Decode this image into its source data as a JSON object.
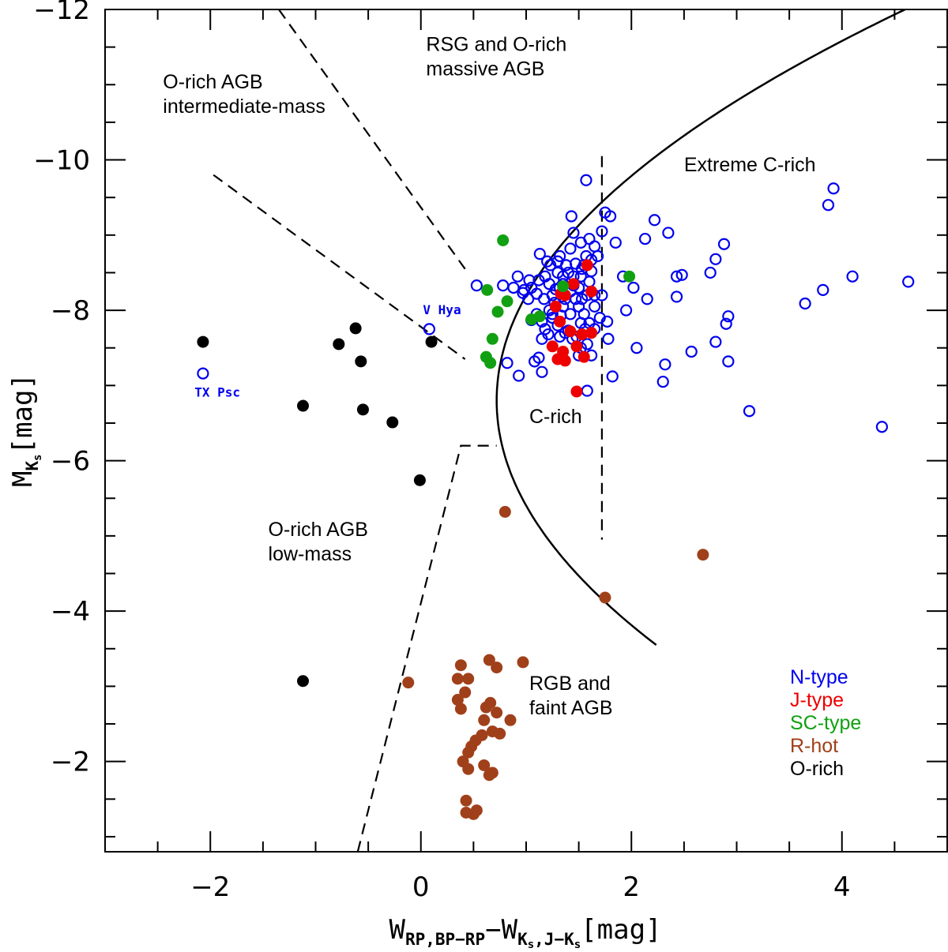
{
  "chart_data": {
    "type": "scatter",
    "xlabel": {
      "main": "W",
      "sub1": "RP,BP−RP",
      "mid": "−W",
      "sub2": "K",
      "sub2s": "s",
      "sub2b": ",J−K",
      "sub2bs": "s",
      "unit": "[mag]"
    },
    "ylabel": {
      "main": "M",
      "sub": "K",
      "subsub": "s",
      "unit": "[mag]"
    },
    "xlim": [
      -3,
      5
    ],
    "ylim": [
      -0.8,
      -12
    ],
    "x_ticks": [
      -2,
      0,
      2,
      4
    ],
    "y_ticks": [
      -2,
      -4,
      -6,
      -8,
      -10,
      -12
    ],
    "x_tick_labels": [
      "−2",
      "0",
      "2",
      "4"
    ],
    "y_tick_labels": [
      "−2",
      "−4",
      "−6",
      "−8",
      "−10",
      "−12"
    ],
    "region_labels": [
      {
        "lines": [
          "RSG and O-rich",
          "massive AGB"
        ],
        "x": 0.05,
        "y": -11.45
      },
      {
        "lines": [
          "O-rich AGB",
          "intermediate-mass"
        ],
        "x": -2.45,
        "y": -10.95
      },
      {
        "lines": [
          "Extreme C-rich"
        ],
        "x": 2.5,
        "y": -9.85
      },
      {
        "lines": [
          "C-rich"
        ],
        "x": 1.03,
        "y": -6.5
      },
      {
        "lines": [
          "O-rich AGB",
          "low-mass"
        ],
        "x": -1.45,
        "y": -5.0
      },
      {
        "lines": [
          "RGB and",
          "faint AGB"
        ],
        "x": 1.03,
        "y": -2.95
      }
    ],
    "star_labels": [
      {
        "text": "V Hya",
        "x": 0.02,
        "y": -7.95
      },
      {
        "text": "TX Psc",
        "x": -2.15,
        "y": -6.85
      }
    ],
    "boundary_curve": {
      "vertex": [
        0.72,
        -6.8
      ],
      "k": 0.1435,
      "y_range": [
        -3.55,
        -12
      ]
    },
    "dashed_lines": [
      [
        [
          -1.35,
          -12
        ],
        [
          0.42,
          -8.55
        ]
      ],
      [
        [
          -1.97,
          -9.8
        ],
        [
          0.42,
          -7.35
        ]
      ],
      [
        [
          -0.6,
          -0.8
        ],
        [
          0.38,
          -6.2
        ],
        [
          0.72,
          -6.2
        ]
      ],
      [
        [
          1.72,
          -10.05
        ],
        [
          1.72,
          -4.95
        ]
      ]
    ],
    "colors": {
      "N-type": "#0000ee",
      "J-type": "#ee0000",
      "SC-type": "#11a011",
      "R-hot": "#a0401a",
      "O-rich": "#000000"
    },
    "legend": [
      {
        "name": "N-type",
        "color": "#0000ee"
      },
      {
        "name": "J-type",
        "color": "#ee0000"
      },
      {
        "name": "SC-type",
        "color": "#11a011"
      },
      {
        "name": "R-hot",
        "color": "#a0401a"
      },
      {
        "name": "O-rich",
        "color": "#000000"
      }
    ],
    "series": [
      {
        "name": "N-type",
        "marker": "open-circle",
        "color": "#0000ee",
        "points": [
          [
            -2.07,
            -7.16
          ],
          [
            0.08,
            -7.75
          ],
          [
            0.53,
            -8.33
          ],
          [
            0.82,
            -7.3
          ],
          [
            0.93,
            -7.13
          ],
          [
            0.88,
            -8.3
          ],
          [
            0.92,
            -8.45
          ],
          [
            0.97,
            -8.23
          ],
          [
            1.03,
            -8.4
          ],
          [
            1.12,
            -8.4
          ],
          [
            1.18,
            -8.45
          ],
          [
            1.22,
            -8.35
          ],
          [
            1.13,
            -8.75
          ],
          [
            1.23,
            -8.6
          ],
          [
            1.3,
            -8.65
          ],
          [
            1.32,
            -8.72
          ],
          [
            1.38,
            -8.6
          ],
          [
            1.42,
            -8.82
          ],
          [
            1.47,
            -8.62
          ],
          [
            1.53,
            -8.55
          ],
          [
            1.57,
            -8.72
          ],
          [
            1.62,
            -8.67
          ],
          [
            1.62,
            -8.52
          ],
          [
            1.52,
            -8.45
          ],
          [
            1.45,
            -8.33
          ],
          [
            1.42,
            -8.25
          ],
          [
            1.37,
            -8.15
          ],
          [
            1.32,
            -8.3
          ],
          [
            1.3,
            -8.5
          ],
          [
            1.28,
            -8.28
          ],
          [
            1.27,
            -8.1
          ],
          [
            1.22,
            -8.0
          ],
          [
            1.25,
            -7.9
          ],
          [
            1.3,
            -7.8
          ],
          [
            1.18,
            -7.75
          ],
          [
            1.15,
            -7.62
          ],
          [
            1.21,
            -7.68
          ],
          [
            1.32,
            -7.65
          ],
          [
            1.37,
            -7.7
          ],
          [
            1.48,
            -7.65
          ],
          [
            1.52,
            -7.5
          ],
          [
            1.58,
            -7.55
          ],
          [
            1.62,
            -7.4
          ],
          [
            1.56,
            -7.75
          ],
          [
            1.6,
            -7.83
          ],
          [
            1.55,
            -7.95
          ],
          [
            1.5,
            -8.05
          ],
          [
            1.53,
            -8.15
          ],
          [
            1.58,
            -8.2
          ],
          [
            1.65,
            -8.05
          ],
          [
            1.7,
            -7.9
          ],
          [
            1.77,
            -7.85
          ],
          [
            1.78,
            -7.62
          ],
          [
            1.72,
            -8.2
          ],
          [
            1.6,
            -8.95
          ],
          [
            1.65,
            -8.85
          ],
          [
            1.68,
            -8.72
          ],
          [
            1.72,
            -9.05
          ],
          [
            1.75,
            -9.3
          ],
          [
            1.8,
            -9.25
          ],
          [
            1.85,
            -8.9
          ],
          [
            1.92,
            -8.45
          ],
          [
            1.95,
            -8.0
          ],
          [
            2.02,
            -8.3
          ],
          [
            2.05,
            -7.5
          ],
          [
            2.13,
            -8.95
          ],
          [
            2.15,
            -8.15
          ],
          [
            2.22,
            -9.2
          ],
          [
            2.35,
            -9.03
          ],
          [
            2.43,
            -8.45
          ],
          [
            2.48,
            -8.47
          ],
          [
            2.43,
            -8.18
          ],
          [
            2.32,
            -7.28
          ],
          [
            2.3,
            -7.05
          ],
          [
            2.57,
            -7.45
          ],
          [
            2.75,
            -8.5
          ],
          [
            2.8,
            -8.68
          ],
          [
            2.88,
            -8.88
          ],
          [
            2.9,
            -7.82
          ],
          [
            2.92,
            -7.92
          ],
          [
            2.8,
            -7.58
          ],
          [
            2.92,
            -7.32
          ],
          [
            3.12,
            -6.66
          ],
          [
            3.65,
            -8.09
          ],
          [
            3.82,
            -8.27
          ],
          [
            3.87,
            -9.4
          ],
          [
            3.92,
            -9.62
          ],
          [
            4.1,
            -8.45
          ],
          [
            4.38,
            -6.45
          ],
          [
            4.63,
            -8.38
          ],
          [
            1.57,
            -9.73
          ],
          [
            1.43,
            -9.25
          ],
          [
            1.45,
            -9.03
          ],
          [
            1.52,
            -8.9
          ],
          [
            1.35,
            -8.35
          ],
          [
            1.05,
            -7.87
          ],
          [
            1.12,
            -7.37
          ],
          [
            1.08,
            -7.32
          ],
          [
            1.15,
            -7.18
          ],
          [
            0.78,
            -8.33
          ],
          [
            0.98,
            -8.27
          ],
          [
            1.02,
            -8.15
          ],
          [
            1.1,
            -8.22
          ],
          [
            1.17,
            -8.15
          ],
          [
            1.25,
            -7.95
          ],
          [
            1.42,
            -7.95
          ],
          [
            1.47,
            -8.15
          ],
          [
            1.52,
            -7.83
          ],
          [
            1.44,
            -7.62
          ],
          [
            1.5,
            -7.4
          ],
          [
            1.58,
            -6.93
          ],
          [
            1.82,
            -7.12
          ],
          [
            1.1,
            -7.95
          ],
          [
            1.4,
            -8.5
          ],
          [
            1.6,
            -8.38
          ],
          [
            1.65,
            -8.2
          ],
          [
            1.35,
            -8.05
          ],
          [
            1.25,
            -8.2
          ],
          [
            1.5,
            -8.3
          ],
          [
            1.45,
            -8.45
          ],
          [
            1.33,
            -7.93
          ],
          [
            1.4,
            -7.73
          ],
          [
            1.55,
            -8.6
          ],
          [
            1.35,
            -8.45
          ],
          [
            1.65,
            -7.75
          ],
          [
            1.2,
            -8.65
          ],
          [
            1.05,
            -8.3
          ],
          [
            1.15,
            -7.85
          ]
        ]
      },
      {
        "name": "J-type",
        "marker": "filled-circle",
        "color": "#ee0000",
        "points": [
          [
            1.28,
            -8.05
          ],
          [
            1.33,
            -8.22
          ],
          [
            1.37,
            -8.2
          ],
          [
            1.45,
            -8.35
          ],
          [
            1.58,
            -8.6
          ],
          [
            1.62,
            -8.25
          ],
          [
            1.32,
            -7.85
          ],
          [
            1.42,
            -7.72
          ],
          [
            1.53,
            -7.68
          ],
          [
            1.62,
            -7.7
          ],
          [
            1.25,
            -7.52
          ],
          [
            1.35,
            -7.45
          ],
          [
            1.48,
            -7.52
          ],
          [
            1.55,
            -7.38
          ],
          [
            1.3,
            -7.35
          ],
          [
            1.37,
            -7.33
          ],
          [
            1.48,
            -6.92
          ]
        ]
      },
      {
        "name": "SC-type",
        "marker": "filled-circle",
        "color": "#11a011",
        "points": [
          [
            0.78,
            -8.93
          ],
          [
            0.63,
            -8.27
          ],
          [
            0.82,
            -8.12
          ],
          [
            0.73,
            -7.98
          ],
          [
            0.68,
            -7.62
          ],
          [
            0.62,
            -7.38
          ],
          [
            0.66,
            -7.3
          ],
          [
            1.13,
            -7.92
          ],
          [
            1.98,
            -8.45
          ],
          [
            1.35,
            -8.32
          ],
          [
            1.05,
            -7.88
          ]
        ]
      },
      {
        "name": "R-hot",
        "marker": "filled-circle",
        "color": "#a0401a",
        "points": [
          [
            0.8,
            -5.32
          ],
          [
            2.68,
            -4.75
          ],
          [
            1.75,
            -4.18
          ],
          [
            -0.12,
            -3.05
          ],
          [
            0.38,
            -3.28
          ],
          [
            0.45,
            -3.1
          ],
          [
            0.35,
            -3.1
          ],
          [
            0.42,
            -2.92
          ],
          [
            0.35,
            -2.82
          ],
          [
            0.38,
            -2.7
          ],
          [
            0.65,
            -3.35
          ],
          [
            0.72,
            -3.25
          ],
          [
            0.97,
            -3.32
          ],
          [
            0.62,
            -2.72
          ],
          [
            0.66,
            -2.78
          ],
          [
            0.72,
            -2.65
          ],
          [
            0.85,
            -2.55
          ],
          [
            0.6,
            -2.55
          ],
          [
            0.58,
            -2.35
          ],
          [
            0.68,
            -2.4
          ],
          [
            0.75,
            -2.37
          ],
          [
            0.52,
            -2.28
          ],
          [
            0.48,
            -2.2
          ],
          [
            0.45,
            -2.12
          ],
          [
            0.4,
            -2.0
          ],
          [
            0.45,
            -1.9
          ],
          [
            0.6,
            -1.95
          ],
          [
            0.65,
            -1.82
          ],
          [
            0.68,
            -1.85
          ],
          [
            0.43,
            -1.48
          ],
          [
            0.43,
            -1.32
          ],
          [
            0.5,
            -1.3
          ],
          [
            0.53,
            -1.35
          ]
        ]
      },
      {
        "name": "O-rich",
        "marker": "filled-circle",
        "color": "#000000",
        "points": [
          [
            -2.07,
            -7.58
          ],
          [
            -0.78,
            -7.55
          ],
          [
            -0.62,
            -7.76
          ],
          [
            -0.57,
            -7.32
          ],
          [
            -1.12,
            -6.73
          ],
          [
            -0.55,
            -6.68
          ],
          [
            -0.27,
            -6.51
          ],
          [
            -0.01,
            -5.74
          ],
          [
            0.1,
            -7.58
          ],
          [
            -1.12,
            -3.07
          ]
        ]
      }
    ]
  }
}
